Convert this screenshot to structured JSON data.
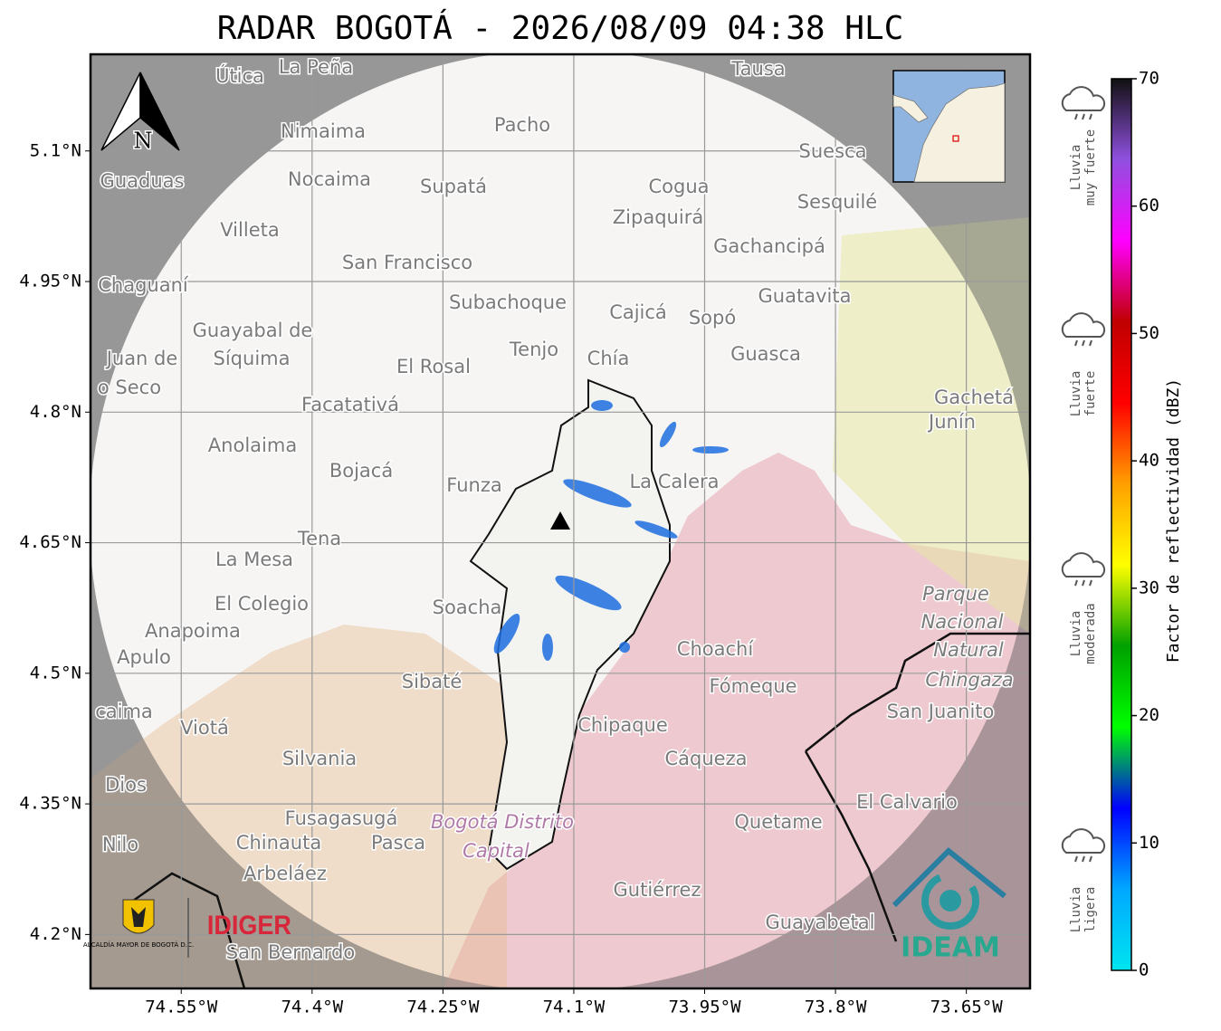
{
  "title": "RADAR BOGOTÁ - 2026/08/09 04:38 HLC",
  "map": {
    "xlim": [
      -74.654,
      -73.577
    ],
    "ylim": [
      4.138,
      5.211
    ],
    "xticks": [
      {
        "value": -74.55,
        "label": "74.55°W"
      },
      {
        "value": -74.4,
        "label": "74.4°W"
      },
      {
        "value": -74.25,
        "label": "74.25°W"
      },
      {
        "value": -74.1,
        "label": "74.1°W"
      },
      {
        "value": -73.95,
        "label": "73.95°W"
      },
      {
        "value": -73.8,
        "label": "73.8°W"
      },
      {
        "value": -73.65,
        "label": "73.65°W"
      }
    ],
    "yticks": [
      {
        "value": 5.1,
        "label": "5.1°N"
      },
      {
        "value": 4.95,
        "label": "4.95°N"
      },
      {
        "value": 4.8,
        "label": "4.8°N"
      },
      {
        "value": 4.65,
        "label": "4.65°N"
      },
      {
        "value": 4.5,
        "label": "4.5°N"
      },
      {
        "value": 4.35,
        "label": "4.35°N"
      },
      {
        "value": 4.2,
        "label": "4.2°N"
      }
    ],
    "north": "N",
    "places": [
      "La Peña",
      "Útica",
      "Tausa",
      "Pacho",
      "Nimaima",
      "Guaduas",
      "Nocaima",
      "Supatá",
      "Cogua",
      "Suesca",
      "Sesquilé",
      "Zipaquirá",
      "Villeta",
      "Gachancipá",
      "San Francisco",
      "Chaguaní",
      "Guatavita",
      "Subachoque",
      "Cajicá",
      "Sopó",
      "Guayabal de",
      "Síquima",
      "Juan de",
      "Tenjo",
      "Chía",
      "Guasca",
      "El Rosal",
      "o Seco",
      "Facatativá",
      "Gachetá",
      "Junín",
      "Anolaima",
      "Bojacá",
      "Funza",
      "La Calera",
      "Tena",
      "La Mesa",
      "El Colegio",
      "Soacha",
      "Parque",
      "Nacional",
      "Natural",
      "Chingaza",
      "Anapoima",
      "Apulo",
      "Choachí",
      "Fómeque",
      "Sibaté",
      "San Juanito",
      "caima",
      "Viotá",
      "Chipaque",
      "Silvania",
      "Cáqueza",
      "Dios",
      "El Calvario",
      "Fusagasugá",
      "Bogotá Distrito",
      "Quetame",
      "Nilo",
      "Chinauta",
      "Pasca",
      "Capital",
      "Arbeláez",
      "Gutiérrez",
      "Guayabetal",
      "San Bernardo"
    ]
  },
  "logos": {
    "alcaldia": "ALCALDÍA MAYOR DE BOGOTÁ D.C.",
    "idiger": "IDIGER",
    "ideam": "IDEAM"
  },
  "colorbar": {
    "label": "Factor de reflectividad (dBZ)",
    "lim": [
      0,
      70
    ],
    "ticks": [
      0,
      10,
      20,
      30,
      40,
      50,
      60,
      70
    ],
    "colors": [
      "#00e5f0",
      "#00a8ff",
      "#0000ff",
      "#00ff00",
      "#00a000",
      "#ffff00",
      "#ffa000",
      "#ff0000",
      "#c00000",
      "#ff00ff",
      "#9050e0",
      "#101010"
    ],
    "categories": [
      [
        "Lluvia",
        "muy fuerte"
      ],
      [
        "Lluvia",
        "fuerte"
      ],
      [
        "Lluvia",
        "moderada"
      ],
      [
        "Lluvia",
        "ligera"
      ]
    ]
  }
}
